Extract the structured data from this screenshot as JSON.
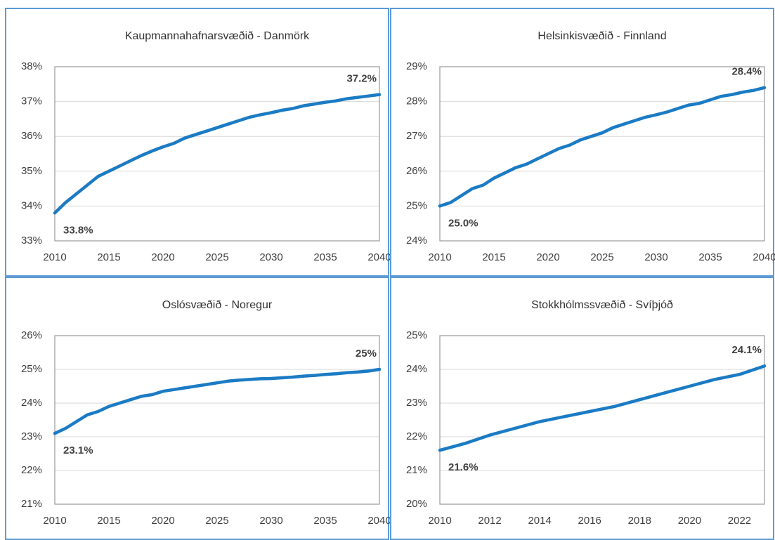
{
  "chart_data": [
    {
      "type": "line",
      "title": "Kaupmannahafnarsvæðið - Danmörk",
      "color": "#1b7bc4",
      "grid": true,
      "x": [
        2010,
        2011,
        2012,
        2013,
        2014,
        2015,
        2016,
        2017,
        2018,
        2019,
        2020,
        2021,
        2022,
        2023,
        2024,
        2025,
        2026,
        2027,
        2028,
        2029,
        2030,
        2031,
        2032,
        2033,
        2034,
        2035,
        2036,
        2037,
        2038,
        2039,
        2040
      ],
      "values": [
        33.8,
        34.1,
        34.35,
        34.6,
        34.85,
        35.0,
        35.15,
        35.3,
        35.45,
        35.58,
        35.7,
        35.8,
        35.95,
        36.05,
        36.15,
        36.25,
        36.35,
        36.45,
        36.55,
        36.62,
        36.68,
        36.75,
        36.8,
        36.88,
        36.93,
        36.98,
        37.02,
        37.08,
        37.12,
        37.16,
        37.2
      ],
      "value_labels": [
        "33.8%",
        null,
        null,
        null,
        null,
        null,
        null,
        null,
        null,
        null,
        null,
        null,
        null,
        null,
        null,
        null,
        null,
        null,
        null,
        null,
        null,
        null,
        null,
        null,
        null,
        null,
        null,
        null,
        null,
        null,
        "37.2%"
      ],
      "xlim": [
        2010,
        2040
      ],
      "xticks": [
        2010,
        2015,
        2020,
        2025,
        2030,
        2035,
        2040
      ],
      "ylim": [
        33,
        38
      ],
      "yticks": [
        {
          "value": 33,
          "label": "33%"
        },
        {
          "value": 34,
          "label": "34%"
        },
        {
          "value": 35,
          "label": "35%"
        },
        {
          "value": 36,
          "label": "36%"
        },
        {
          "value": 37,
          "label": "37%"
        },
        {
          "value": 38,
          "label": "38%"
        }
      ]
    },
    {
      "type": "line",
      "title": "Helsinkisvæðið - Finnland",
      "color": "#1b7bc4",
      "grid": true,
      "x": [
        2010,
        2011,
        2012,
        2013,
        2014,
        2015,
        2016,
        2017,
        2018,
        2019,
        2020,
        2021,
        2022,
        2023,
        2024,
        2025,
        2026,
        2027,
        2028,
        2029,
        2030,
        2031,
        2032,
        2033,
        2034,
        2035,
        2036,
        2037,
        2038,
        2039,
        2040
      ],
      "values": [
        25.0,
        25.1,
        25.3,
        25.5,
        25.6,
        25.8,
        25.95,
        26.1,
        26.2,
        26.35,
        26.5,
        26.65,
        26.75,
        26.9,
        27.0,
        27.1,
        27.25,
        27.35,
        27.45,
        27.55,
        27.62,
        27.7,
        27.8,
        27.9,
        27.95,
        28.05,
        28.15,
        28.2,
        28.27,
        28.32,
        28.4
      ],
      "value_labels": [
        "25.0%",
        null,
        null,
        null,
        null,
        null,
        null,
        null,
        null,
        null,
        null,
        null,
        null,
        null,
        null,
        null,
        null,
        null,
        null,
        null,
        null,
        null,
        null,
        null,
        null,
        null,
        null,
        null,
        null,
        null,
        "28.4%"
      ],
      "xlim": [
        2010,
        2040
      ],
      "xticks": [
        2010,
        2015,
        2020,
        2025,
        2030,
        2035,
        2040
      ],
      "ylim": [
        24,
        29
      ],
      "yticks": [
        {
          "value": 24,
          "label": "24%"
        },
        {
          "value": 25,
          "label": "25%"
        },
        {
          "value": 26,
          "label": "26%"
        },
        {
          "value": 27,
          "label": "27%"
        },
        {
          "value": 28,
          "label": "28%"
        },
        {
          "value": 29,
          "label": "29%"
        }
      ]
    },
    {
      "type": "line",
      "title": "Oslósvæðið - Noregur",
      "color": "#1b7bc4",
      "grid": true,
      "x": [
        2010,
        2011,
        2012,
        2013,
        2014,
        2015,
        2016,
        2017,
        2018,
        2019,
        2020,
        2021,
        2022,
        2023,
        2024,
        2025,
        2026,
        2027,
        2028,
        2029,
        2030,
        2031,
        2032,
        2033,
        2034,
        2035,
        2036,
        2037,
        2038,
        2039,
        2040
      ],
      "values": [
        23.1,
        23.25,
        23.45,
        23.65,
        23.75,
        23.9,
        24.0,
        24.1,
        24.2,
        24.25,
        24.35,
        24.4,
        24.45,
        24.5,
        24.55,
        24.6,
        24.65,
        24.68,
        24.7,
        24.72,
        24.73,
        24.75,
        24.77,
        24.8,
        24.82,
        24.85,
        24.87,
        24.9,
        24.92,
        24.95,
        25.0
      ],
      "value_labels": [
        "23.1%",
        null,
        null,
        null,
        null,
        null,
        null,
        null,
        null,
        null,
        null,
        null,
        null,
        null,
        null,
        null,
        null,
        null,
        null,
        null,
        null,
        null,
        null,
        null,
        null,
        null,
        null,
        null,
        null,
        null,
        "25%"
      ],
      "xlim": [
        2010,
        2040
      ],
      "xticks": [
        2010,
        2015,
        2020,
        2025,
        2030,
        2035,
        2040
      ],
      "ylim": [
        21,
        26
      ],
      "yticks": [
        {
          "value": 21,
          "label": "21%"
        },
        {
          "value": 22,
          "label": "22%"
        },
        {
          "value": 23,
          "label": "23%"
        },
        {
          "value": 24,
          "label": "24%"
        },
        {
          "value": 25,
          "label": "25%"
        },
        {
          "value": 26,
          "label": "26%"
        }
      ]
    },
    {
      "type": "line",
      "title": "Stokkhólmssvæðið - Svíþjóð",
      "color": "#1b7bc4",
      "grid": true,
      "x": [
        2010,
        2011,
        2012,
        2013,
        2014,
        2015,
        2016,
        2017,
        2018,
        2019,
        2020,
        2021,
        2022,
        2023
      ],
      "values": [
        21.6,
        21.8,
        22.05,
        22.25,
        22.45,
        22.6,
        22.75,
        22.9,
        23.1,
        23.3,
        23.5,
        23.7,
        23.85,
        24.1
      ],
      "value_labels": [
        "21.6%",
        null,
        null,
        null,
        null,
        null,
        null,
        null,
        null,
        null,
        null,
        null,
        null,
        "24.1%"
      ],
      "xlim": [
        2010,
        2023
      ],
      "xticks": [
        2010,
        2012,
        2014,
        2016,
        2018,
        2020,
        2022
      ],
      "ylim": [
        20,
        25
      ],
      "yticks": [
        {
          "value": 20,
          "label": "20%"
        },
        {
          "value": 21,
          "label": "21%"
        },
        {
          "value": 22,
          "label": "22%"
        },
        {
          "value": 23,
          "label": "23%"
        },
        {
          "value": 24,
          "label": "24%"
        },
        {
          "value": 25,
          "label": "25%"
        }
      ]
    }
  ]
}
